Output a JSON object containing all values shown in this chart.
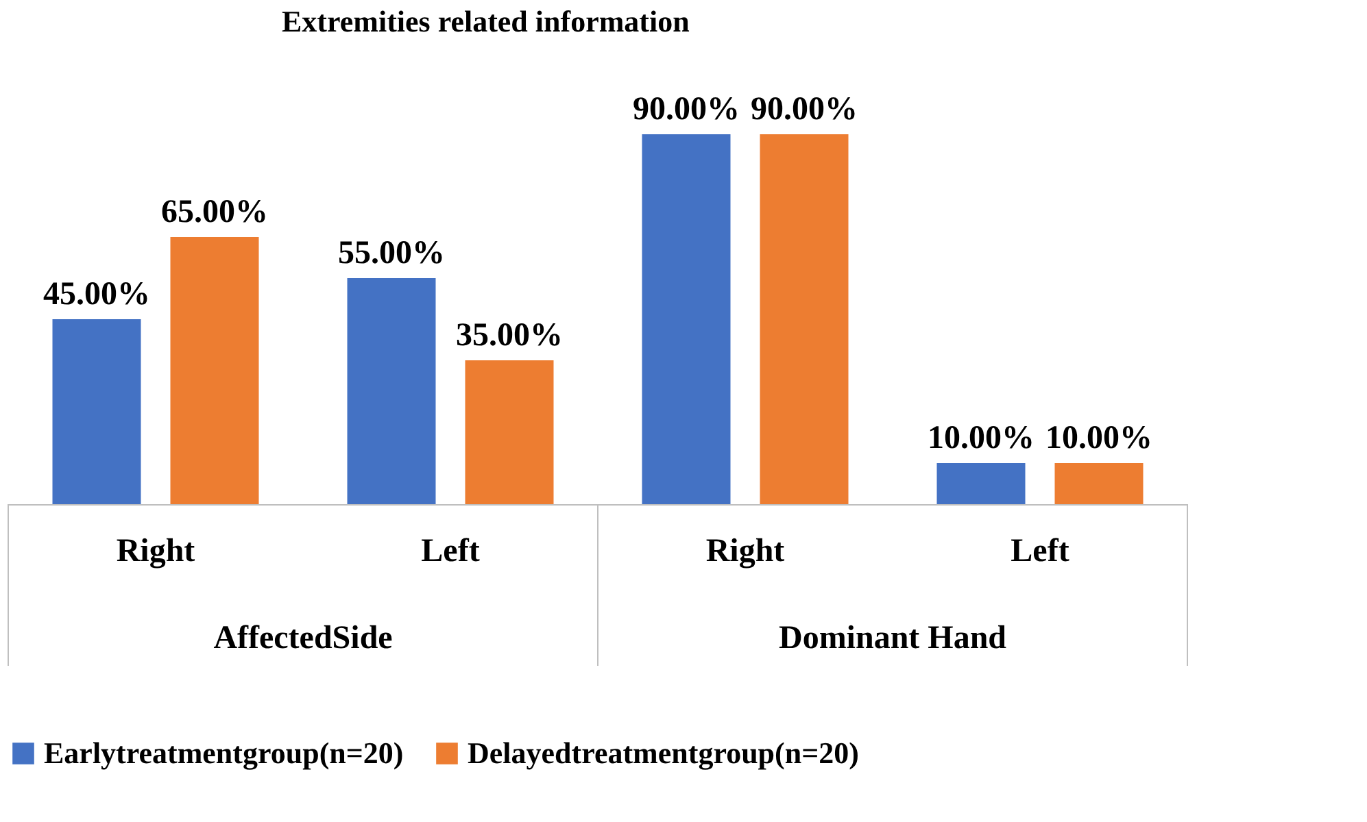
{
  "chart_data": {
    "type": "bar",
    "title": "Extremities related information",
    "categories": [
      "Right",
      "Left",
      "Right",
      "Left"
    ],
    "annotations": [
      "AffectedSide",
      "Dominant Hand"
    ],
    "series": [
      {
        "name": "Earlytreatmentgroup(n=20)",
        "color": "#4472c4",
        "values": [
          45,
          55,
          90,
          10
        ],
        "value_labels": [
          "45.00%",
          "55.00%",
          "90.00%",
          "10.00%"
        ]
      },
      {
        "name": "Delayedtreatmentgroup(n=20)",
        "color": "#ed7d31",
        "values": [
          65,
          35,
          90,
          10
        ],
        "value_labels": [
          "65.00%",
          "35.00%",
          "90.00%",
          "10.00%"
        ]
      }
    ],
    "legend": "bottom"
  }
}
